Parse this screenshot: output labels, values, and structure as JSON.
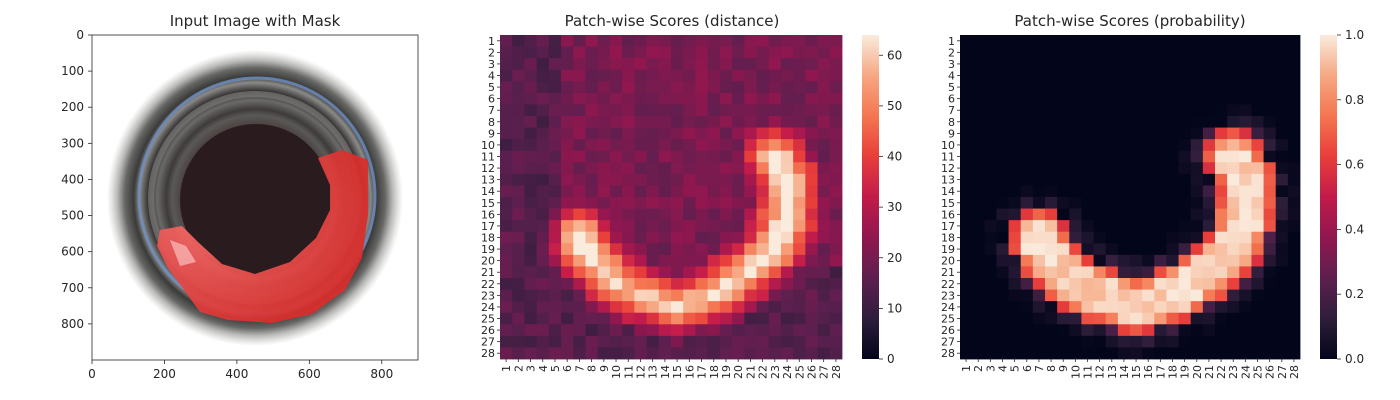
{
  "figure": {
    "panels": [
      {
        "title": "Input Image with Mask",
        "x_ticks": [
          "0",
          "200",
          "400",
          "600",
          "800"
        ],
        "y_ticks": [
          "0",
          "100",
          "200",
          "300",
          "400",
          "500",
          "600",
          "700",
          "800"
        ]
      },
      {
        "title": "Patch-wise Scores (distance)",
        "colorbar_ticks": [
          "0",
          "10",
          "20",
          "30",
          "40",
          "50",
          "60"
        ]
      },
      {
        "title": "Patch-wise Scores (probability)",
        "colorbar_ticks": [
          "0.0",
          "0.2",
          "0.4",
          "0.6",
          "0.8",
          "1.0"
        ]
      }
    ],
    "grid_labels": [
      "1",
      "2",
      "3",
      "4",
      "5",
      "6",
      "7",
      "8",
      "9",
      "10",
      "11",
      "12",
      "13",
      "14",
      "15",
      "16",
      "17",
      "18",
      "19",
      "20",
      "21",
      "22",
      "23",
      "24",
      "25",
      "26",
      "27",
      "28"
    ],
    "colors": {
      "mask_red": "#e8413f",
      "ring_dark": "#3a3a3a",
      "ring_light": "#8a8a88",
      "rim_blue": "#6e8fc6",
      "center": "#2a1c1e"
    }
  },
  "chart_data": [
    {
      "type": "image",
      "title": "Input Image with Mask",
      "xlim": [
        0,
        900
      ],
      "ylim": [
        900,
        0
      ],
      "annotations": [
        "red mask over a C-shaped defect region on the inner ring of a bottle bottom"
      ]
    },
    {
      "type": "heatmap",
      "title": "Patch-wise Scores (distance)",
      "x_categories": [
        "1",
        "2",
        "3",
        "4",
        "5",
        "6",
        "7",
        "8",
        "9",
        "10",
        "11",
        "12",
        "13",
        "14",
        "15",
        "16",
        "17",
        "18",
        "19",
        "20",
        "21",
        "22",
        "23",
        "24",
        "25",
        "26",
        "27",
        "28"
      ],
      "y_categories": [
        "1",
        "2",
        "3",
        "4",
        "5",
        "6",
        "7",
        "8",
        "9",
        "10",
        "11",
        "12",
        "13",
        "14",
        "15",
        "16",
        "17",
        "18",
        "19",
        "20",
        "21",
        "22",
        "23",
        "24",
        "25",
        "26",
        "27",
        "28"
      ],
      "value_range": [
        0,
        64
      ],
      "colormap": "rocket",
      "approximate_values": "background ~15-25; C-shaped band high (~45-64); band runs from rows 9-14 at columns 21-26 down through rows 18-27 and back up to row 18 at columns 6-8",
      "colorbar_ticks": [
        0,
        10,
        20,
        30,
        40,
        50,
        60
      ]
    },
    {
      "type": "heatmap",
      "title": "Patch-wise Scores (probability)",
      "x_categories": [
        "1",
        "2",
        "3",
        "4",
        "5",
        "6",
        "7",
        "8",
        "9",
        "10",
        "11",
        "12",
        "13",
        "14",
        "15",
        "16",
        "17",
        "18",
        "19",
        "20",
        "21",
        "22",
        "23",
        "24",
        "25",
        "26",
        "27",
        "28"
      ],
      "y_categories": [
        "1",
        "2",
        "3",
        "4",
        "5",
        "6",
        "7",
        "8",
        "9",
        "10",
        "11",
        "12",
        "13",
        "14",
        "15",
        "16",
        "17",
        "18",
        "19",
        "20",
        "21",
        "22",
        "23",
        "24",
        "25",
        "26",
        "27",
        "28"
      ],
      "value_range": [
        0.0,
        1.0
      ],
      "colormap": "rocket",
      "approximate_values": "background ~0; C-shaped band ~0.8-1.0 with edges ~0.3-0.7",
      "colorbar_ticks": [
        0.0,
        0.2,
        0.4,
        0.6,
        0.8,
        1.0
      ]
    }
  ]
}
